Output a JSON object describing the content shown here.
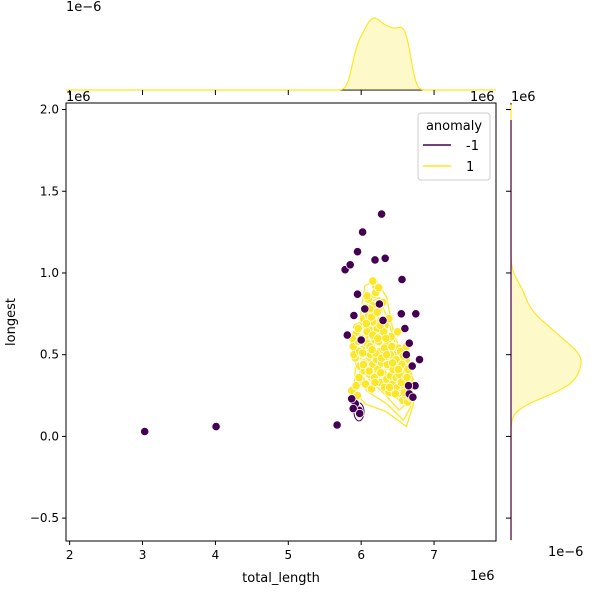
{
  "chart_data": {
    "type": "scatter",
    "title": "",
    "xlabel": "total_length",
    "ylabel": "longest",
    "x_offset_label": "1e6",
    "y_offset_label": "1e6",
    "x_multiplier": 1000000,
    "y_multiplier": 1000000,
    "xlim": [
      1.95,
      7.85
    ],
    "ylim": [
      -0.64,
      2.04
    ],
    "x_ticks": [
      2,
      3,
      4,
      5,
      6,
      7
    ],
    "y_ticks": [
      -0.5,
      0.0,
      0.5,
      1.0,
      1.5,
      2.0
    ],
    "grid": false,
    "legend": {
      "title": "anomaly",
      "placement": "top-right",
      "entries": [
        {
          "label": "-1",
          "color": "#440154"
        },
        {
          "label": "1",
          "color": "#fde725"
        }
      ]
    },
    "marginal_top": {
      "offset_label": "1e−6",
      "type": "kde"
    },
    "marginal_right": {
      "offset_label": "1e−6",
      "type": "kde"
    },
    "series": [
      {
        "name": "-1",
        "color": "#440154",
        "x": [
          3.03,
          4.01,
          5.67,
          5.78,
          5.85,
          5.9,
          5.95,
          6.02,
          6.19,
          6.28,
          6.33,
          6.56,
          6.55,
          6.75,
          6.66,
          6.7,
          6.74,
          6.8,
          5.81,
          6.05,
          5.97,
          5.92,
          5.89,
          5.95,
          6.66,
          6.62,
          6.65,
          6.0,
          6.25,
          6.3,
          6.6,
          6.71,
          5.98,
          5.87
        ],
        "y": [
          0.03,
          0.06,
          0.07,
          1.02,
          1.05,
          0.74,
          0.87,
          1.25,
          1.08,
          1.36,
          1.09,
          0.96,
          0.75,
          0.75,
          0.57,
          0.43,
          0.31,
          0.47,
          0.62,
          0.78,
          0.16,
          0.2,
          0.17,
          1.13,
          0.26,
          0.5,
          0.31,
          0.59,
          0.81,
          0.71,
          0.66,
          0.24,
          0.14,
          0.23
        ]
      },
      {
        "name": "1",
        "color": "#fde725",
        "x": [
          5.87,
          5.89,
          5.91,
          5.92,
          5.93,
          5.95,
          5.96,
          5.98,
          5.99,
          6.0,
          6.01,
          6.03,
          6.04,
          6.05,
          6.06,
          6.08,
          6.09,
          6.1,
          6.11,
          6.12,
          6.13,
          6.14,
          6.15,
          6.16,
          6.17,
          6.18,
          6.19,
          6.2,
          6.21,
          6.22,
          6.23,
          6.24,
          6.25,
          6.26,
          6.27,
          6.28,
          6.29,
          6.3,
          6.31,
          6.32,
          6.33,
          6.34,
          6.35,
          6.36,
          6.37,
          6.38,
          6.39,
          6.4,
          6.41,
          6.42,
          6.43,
          6.44,
          6.45,
          6.46,
          6.47,
          6.48,
          6.49,
          6.5,
          6.51,
          6.52,
          6.53,
          6.54,
          6.55,
          6.56,
          6.57,
          6.58,
          6.59,
          6.6,
          6.61,
          6.62,
          6.63,
          6.64,
          6.65,
          6.66,
          6.67,
          6.68,
          5.9,
          5.94,
          5.97,
          6.0,
          6.04,
          6.08,
          6.12,
          6.16,
          6.2,
          6.24,
          6.28,
          6.32,
          6.36,
          6.4,
          6.44,
          6.48,
          6.52,
          6.56,
          6.6,
          6.64,
          6.68,
          5.88,
          5.93,
          5.98,
          6.03,
          6.07,
          6.11,
          6.15,
          6.19,
          6.23,
          6.27,
          6.31,
          6.35,
          6.39,
          6.43,
          6.47,
          6.51,
          6.55,
          6.59,
          6.63,
          6.67,
          6.1,
          6.14,
          6.18,
          6.22,
          6.26,
          6.3,
          6.34,
          6.38,
          6.42,
          6.5,
          6.54,
          6.58,
          6.62,
          6.06,
          6.02,
          5.96,
          6.16,
          6.2,
          6.24,
          6.12,
          6.08
        ],
        "y": [
          0.28,
          0.55,
          0.22,
          0.48,
          0.63,
          0.25,
          0.58,
          0.43,
          0.68,
          0.35,
          0.53,
          0.72,
          0.4,
          0.61,
          0.32,
          0.57,
          0.46,
          0.74,
          0.38,
          0.65,
          0.5,
          0.29,
          0.8,
          0.44,
          0.7,
          0.36,
          0.59,
          0.92,
          0.47,
          0.66,
          0.41,
          0.77,
          0.52,
          0.33,
          0.71,
          0.45,
          0.62,
          0.39,
          0.56,
          0.3,
          0.68,
          0.48,
          0.35,
          0.58,
          0.43,
          0.27,
          0.52,
          0.37,
          0.61,
          0.46,
          0.32,
          0.55,
          0.41,
          0.28,
          0.5,
          0.36,
          0.45,
          0.3,
          0.54,
          0.39,
          0.26,
          0.48,
          0.34,
          0.43,
          0.22,
          0.51,
          0.29,
          0.4,
          0.25,
          0.47,
          0.33,
          0.21,
          0.38,
          0.28,
          0.35,
          0.24,
          0.5,
          0.67,
          0.36,
          0.6,
          0.45,
          0.64,
          0.55,
          0.62,
          0.51,
          0.58,
          0.48,
          0.54,
          0.44,
          0.5,
          0.41,
          0.47,
          0.38,
          0.44,
          0.35,
          0.41,
          0.31,
          0.6,
          0.31,
          0.52,
          0.44,
          0.69,
          0.4,
          0.53,
          0.33,
          0.6,
          0.39,
          0.64,
          0.5,
          0.3,
          0.45,
          0.26,
          0.41,
          0.33,
          0.27,
          0.36,
          0.3,
          0.84,
          0.73,
          0.87,
          0.76,
          0.68,
          0.82,
          0.6,
          0.72,
          0.55,
          0.64,
          0.52,
          0.49,
          0.55,
          0.79,
          0.51,
          0.66,
          0.95,
          0.88,
          0.91,
          0.78,
          0.86
        ]
      }
    ]
  }
}
